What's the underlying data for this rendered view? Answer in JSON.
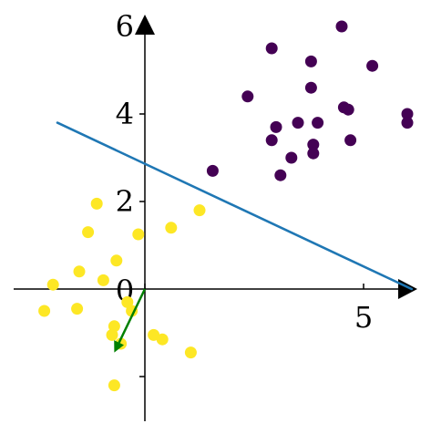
{
  "chart_data": {
    "type": "scatter",
    "title": "",
    "xlabel": "",
    "ylabel": "",
    "xlim": [
      -3,
      6.2
    ],
    "ylim": [
      -3,
      6.2
    ],
    "grid": false,
    "legend": "none",
    "x_ticks": [
      {
        "value": 0,
        "label": "0"
      },
      {
        "value": 5,
        "label": "5"
      }
    ],
    "y_ticks": [
      {
        "value": -2,
        "label": ""
      },
      {
        "value": 2,
        "label": "2"
      },
      {
        "value": 4,
        "label": "4"
      },
      {
        "value": 6,
        "label": "6"
      }
    ],
    "series": [
      {
        "color": "#440154",
        "points": [
          {
            "x": 1.55,
            "y": 2.7
          },
          {
            "x": 2.35,
            "y": 4.4
          },
          {
            "x": 2.9,
            "y": 5.5
          },
          {
            "x": 3.0,
            "y": 3.7
          },
          {
            "x": 2.9,
            "y": 3.4
          },
          {
            "x": 3.1,
            "y": 2.6
          },
          {
            "x": 3.35,
            "y": 3.0
          },
          {
            "x": 3.5,
            "y": 3.8
          },
          {
            "x": 3.8,
            "y": 5.2
          },
          {
            "x": 3.8,
            "y": 4.6
          },
          {
            "x": 3.85,
            "y": 3.3
          },
          {
            "x": 3.85,
            "y": 3.1
          },
          {
            "x": 3.95,
            "y": 3.8
          },
          {
            "x": 4.5,
            "y": 6.0
          },
          {
            "x": 4.55,
            "y": 4.15
          },
          {
            "x": 4.65,
            "y": 4.1
          },
          {
            "x": 4.7,
            "y": 3.4
          },
          {
            "x": 5.2,
            "y": 5.1
          },
          {
            "x": 6.0,
            "y": 4.0
          },
          {
            "x": 6.0,
            "y": 3.8
          }
        ]
      },
      {
        "color": "#fde725",
        "points": [
          {
            "x": -2.3,
            "y": -0.5
          },
          {
            "x": -2.1,
            "y": 0.1
          },
          {
            "x": -1.55,
            "y": -0.45
          },
          {
            "x": -1.5,
            "y": 0.4
          },
          {
            "x": -1.3,
            "y": 1.3
          },
          {
            "x": -1.1,
            "y": 1.95
          },
          {
            "x": -0.95,
            "y": 0.2
          },
          {
            "x": -0.65,
            "y": 0.65
          },
          {
            "x": -0.7,
            "y": -0.85
          },
          {
            "x": -0.75,
            "y": -1.05
          },
          {
            "x": -0.55,
            "y": -1.25
          },
          {
            "x": -0.7,
            "y": -2.2
          },
          {
            "x": -0.4,
            "y": -0.3
          },
          {
            "x": -0.3,
            "y": -0.5
          },
          {
            "x": -0.15,
            "y": 1.25
          },
          {
            "x": 0.2,
            "y": -1.05
          },
          {
            "x": 0.4,
            "y": -1.15
          },
          {
            "x": 0.6,
            "y": 1.4
          },
          {
            "x": 1.05,
            "y": -1.45
          },
          {
            "x": 1.25,
            "y": 1.8
          }
        ]
      }
    ],
    "lines": [
      {
        "color": "#1f77b4",
        "x": [
          -2.0,
          6.1
        ],
        "y": [
          3.8,
          0.0
        ]
      }
    ],
    "arrows": [
      {
        "color": "#008000",
        "from": [
          0,
          0
        ],
        "to": [
          -0.7,
          -1.45
        ]
      }
    ]
  }
}
